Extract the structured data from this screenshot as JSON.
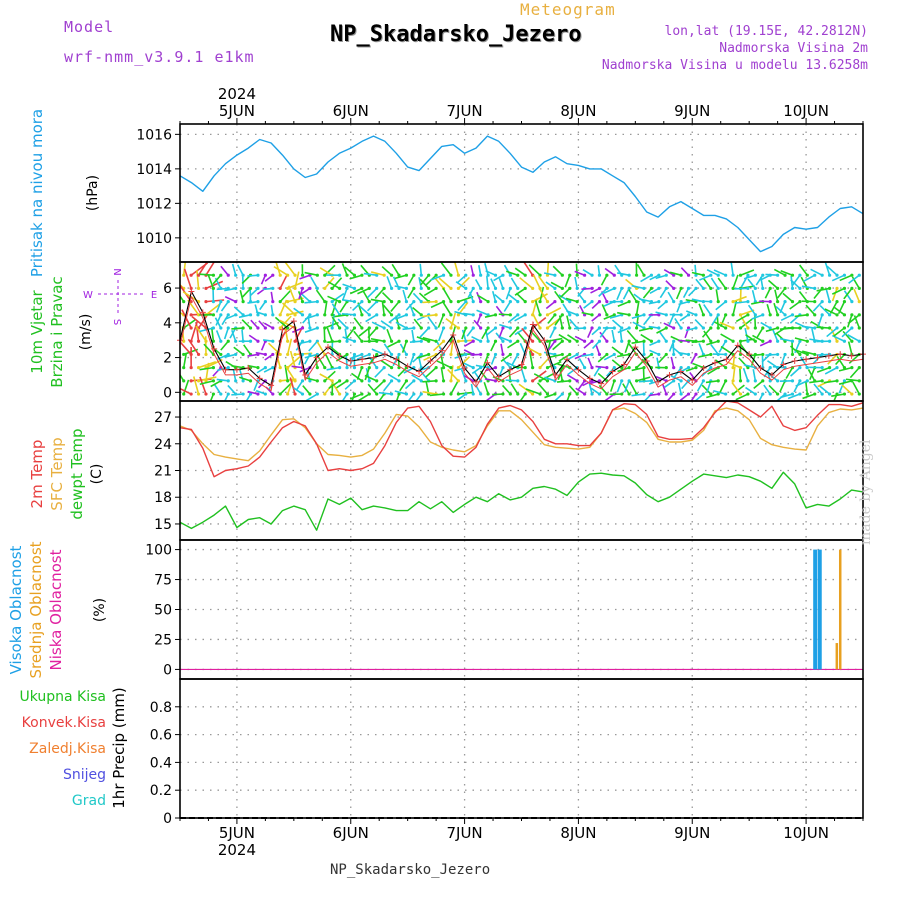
{
  "header": {
    "model_label": "Model",
    "model_name": "wrf-nmm_v3.9.1 e1km",
    "kind": "Meteogram",
    "station": "NP_Skadarsko_Jezero",
    "lonlat": "lon,lat (19.15E, 42.2812N)",
    "altitude": "Nadmorska Visina 2m",
    "model_altitude": "Nadmorska Visina u modelu 13.6258m"
  },
  "footer": {
    "station": "NP_Skadarsko_Jezero",
    "credit": "made by Angel"
  },
  "colors": {
    "pressure": "#1ea0e6",
    "t2m": "#e84040",
    "sfc": "#e8b040",
    "dewpt": "#20c020",
    "high_cloud": "#1ea0e6",
    "mid_cloud": "#e8a020",
    "low_cloud": "#e020a0",
    "wind_label": "#20c020",
    "barb_slow": "#a020e0",
    "barb_mid": "#20c8e0",
    "barb_fast": "#20d020",
    "barb_faster": "#e8d020",
    "barb_fastest": "#e84040"
  },
  "time_axis": {
    "year": "2024",
    "days": [
      "5JUN",
      "6JUN",
      "7JUN",
      "8JUN",
      "9JUN",
      "10JUN"
    ]
  },
  "chart_data": [
    {
      "type": "line",
      "panel": "pressure",
      "ylabel": "Pritisak na nivou mora",
      "unit": "(hPa)",
      "ylim": [
        1008.6,
        1016.6
      ],
      "yticks": [
        1010,
        1012,
        1014,
        1016
      ],
      "grid": true,
      "x": [
        4.5,
        4.6,
        4.7,
        4.8,
        4.9,
        5.0,
        5.1,
        5.2,
        5.3,
        5.4,
        5.5,
        5.6,
        5.7,
        5.8,
        5.9,
        6.0,
        6.1,
        6.2,
        6.3,
        6.4,
        6.5,
        6.6,
        6.7,
        6.8,
        6.9,
        7.0,
        7.1,
        7.2,
        7.3,
        7.4,
        7.5,
        7.6,
        7.7,
        7.8,
        7.9,
        8.0,
        8.1,
        8.2,
        8.3,
        8.4,
        8.5,
        8.6,
        8.7,
        8.8,
        8.9,
        9.0,
        9.1,
        9.2,
        9.3,
        9.4,
        9.5,
        9.6,
        9.7,
        9.8,
        9.9,
        10.0,
        10.1,
        10.2,
        10.3,
        10.4,
        10.5
      ],
      "series": [
        {
          "values": [
            1013.6,
            1013.2,
            1012.7,
            1013.6,
            1014.3,
            1014.8,
            1015.2,
            1015.7,
            1015.5,
            1014.8,
            1014.0,
            1013.5,
            1013.7,
            1014.4,
            1014.9,
            1015.2,
            1015.6,
            1015.9,
            1015.6,
            1014.9,
            1014.1,
            1013.9,
            1014.6,
            1015.3,
            1015.4,
            1014.9,
            1015.2,
            1015.9,
            1015.6,
            1014.9,
            1014.1,
            1013.8,
            1014.4,
            1014.7,
            1014.3,
            1014.2,
            1014.0,
            1014.0,
            1013.6,
            1013.2,
            1012.4,
            1011.5,
            1011.2,
            1011.8,
            1012.1,
            1011.7,
            1011.3,
            1011.3,
            1011.1,
            1010.6,
            1009.9,
            1009.2,
            1009.5,
            1010.2,
            1010.6,
            1010.5,
            1010.6,
            1011.2,
            1011.7,
            1011.8,
            1011.4
          ]
        }
      ]
    },
    {
      "type": "line",
      "panel": "wind",
      "ylabel": "10m Vjetar Brzina i Pravac",
      "unit": "(m/s)",
      "ylim": [
        -0.5,
        7.5
      ],
      "yticks": [
        0,
        2,
        4,
        6
      ],
      "compass": {
        "n": "N",
        "e": "E",
        "w": "W",
        "s": "S"
      },
      "grid": true,
      "x": [
        4.5,
        4.6,
        4.7,
        4.8,
        4.9,
        5.0,
        5.1,
        5.2,
        5.3,
        5.4,
        5.5,
        5.6,
        5.7,
        5.8,
        5.9,
        6.0,
        6.1,
        6.2,
        6.3,
        6.4,
        6.5,
        6.6,
        6.7,
        6.8,
        6.9,
        7.0,
        7.1,
        7.2,
        7.3,
        7.4,
        7.5,
        7.6,
        7.7,
        7.8,
        7.9,
        8.0,
        8.1,
        8.2,
        8.3,
        8.4,
        8.5,
        8.6,
        8.7,
        8.8,
        8.9,
        9.0,
        9.1,
        9.2,
        9.3,
        9.4,
        9.5,
        9.6,
        9.7,
        9.8,
        9.9,
        10.0,
        10.1,
        10.2,
        10.3,
        10.4,
        10.5
      ],
      "series": [
        {
          "values": [
            3.0,
            5.8,
            4.6,
            2.5,
            1.3,
            1.3,
            1.4,
            0.8,
            0.4,
            3.6,
            4.1,
            1.0,
            2.0,
            2.6,
            2.1,
            1.8,
            1.9,
            2.0,
            2.2,
            1.9,
            1.5,
            1.2,
            1.8,
            2.4,
            3.3,
            1.4,
            0.6,
            1.7,
            0.9,
            1.3,
            1.6,
            3.9,
            3.0,
            1.0,
            1.9,
            1.3,
            0.8,
            0.5,
            1.2,
            1.6,
            2.6,
            1.8,
            0.6,
            1.0,
            1.2,
            0.7,
            1.4,
            1.7,
            1.9,
            2.7,
            2.2,
            1.4,
            1.0,
            1.6,
            1.8,
            1.9,
            2.0,
            2.1,
            2.2,
            2.1,
            2.2
          ]
        }
      ]
    },
    {
      "type": "line",
      "panel": "temperature",
      "ylabel": "2m Temp / SFC Temp / dewpt Temp",
      "series_labels": [
        "2m Temp",
        "SFC Temp",
        "dewpt Temp"
      ],
      "unit": "(C)",
      "ylim": [
        13.2,
        28.8
      ],
      "yticks": [
        15,
        18,
        21,
        24,
        27
      ],
      "grid": true,
      "x": [
        4.5,
        4.6,
        4.7,
        4.8,
        4.9,
        5.0,
        5.1,
        5.2,
        5.3,
        5.4,
        5.5,
        5.6,
        5.7,
        5.8,
        5.9,
        6.0,
        6.1,
        6.2,
        6.3,
        6.4,
        6.5,
        6.6,
        6.7,
        6.8,
        6.9,
        7.0,
        7.1,
        7.2,
        7.3,
        7.4,
        7.5,
        7.6,
        7.7,
        7.8,
        7.9,
        8.0,
        8.1,
        8.2,
        8.3,
        8.4,
        8.5,
        8.6,
        8.7,
        8.8,
        8.9,
        9.0,
        9.1,
        9.2,
        9.3,
        9.4,
        9.5,
        9.6,
        9.7,
        9.8,
        9.9,
        10.0,
        10.1,
        10.2,
        10.3,
        10.4,
        10.5
      ],
      "series": [
        {
          "values": [
            25.8,
            25.6,
            23.5,
            20.3,
            21.0,
            21.2,
            21.5,
            22.5,
            24.2,
            25.8,
            26.5,
            26.0,
            24.0,
            21.0,
            21.2,
            21.0,
            21.2,
            21.8,
            23.8,
            26.4,
            28.0,
            28.2,
            26.5,
            23.8,
            22.6,
            22.5,
            23.6,
            26.2,
            28.0,
            28.3,
            27.8,
            26.5,
            24.5,
            24.0,
            24.0,
            23.8,
            23.8,
            25.2,
            27.8,
            28.5,
            28.4,
            27.3,
            24.8,
            24.5,
            24.5,
            24.6,
            25.8,
            27.5,
            28.8,
            28.6,
            27.8,
            27.0,
            28.2,
            26.0,
            25.5,
            25.8,
            27.2,
            28.4,
            28.4,
            28.2,
            28.6
          ]
        },
        {
          "values": [
            26.0,
            25.5,
            24.0,
            22.8,
            22.5,
            22.3,
            22.1,
            23.2,
            25.0,
            26.7,
            26.8,
            25.8,
            24.0,
            22.8,
            22.7,
            22.5,
            22.7,
            23.4,
            25.2,
            27.3,
            27.1,
            25.9,
            24.2,
            23.6,
            23.3,
            23.1,
            23.8,
            26.0,
            27.7,
            27.7,
            26.7,
            25.3,
            23.9,
            23.6,
            23.5,
            23.4,
            23.6,
            25.2,
            27.8,
            28.0,
            27.4,
            26.4,
            24.5,
            24.2,
            24.2,
            24.4,
            25.5,
            27.7,
            28.0,
            27.7,
            26.7,
            24.6,
            23.9,
            23.6,
            23.4,
            23.3,
            26.0,
            27.5,
            27.9,
            27.8,
            28.0
          ]
        },
        {
          "values": [
            15.2,
            14.5,
            15.2,
            16.0,
            17.0,
            14.6,
            15.5,
            15.7,
            15.0,
            16.5,
            17.0,
            16.6,
            14.3,
            17.8,
            17.2,
            17.9,
            16.6,
            17.0,
            16.8,
            16.5,
            16.5,
            17.5,
            16.7,
            17.5,
            16.3,
            17.2,
            18.0,
            17.5,
            18.4,
            17.7,
            18.0,
            19.0,
            19.2,
            18.9,
            18.2,
            19.7,
            20.6,
            20.7,
            20.5,
            20.4,
            19.6,
            18.3,
            17.5,
            18.0,
            18.9,
            19.8,
            20.6,
            20.4,
            20.2,
            20.5,
            20.3,
            19.8,
            19.0,
            20.8,
            19.5,
            16.8,
            17.2,
            17.0,
            17.8,
            18.8,
            18.6
          ]
        }
      ]
    },
    {
      "type": "bar",
      "panel": "cloud",
      "series_labels": [
        "Visoka Oblacnost",
        "Srednja Oblacnost",
        "Niska Oblacnost"
      ],
      "unit": "(%)",
      "ylim": [
        -8,
        108
      ],
      "yticks": [
        0,
        25,
        50,
        75,
        100
      ],
      "grid": true,
      "series": [
        {
          "name": "Visoka Oblacnost",
          "x": [
            10.08,
            10.12
          ],
          "values": [
            100,
            100
          ]
        },
        {
          "name": "Srednja Oblacnost",
          "x": [
            10.27,
            10.3
          ],
          "values": [
            22,
            100
          ]
        },
        {
          "name": "Niska Oblacnost",
          "x": [],
          "values": []
        }
      ]
    },
    {
      "type": "bar",
      "panel": "precip",
      "ylabel": "1hr Precip",
      "unit": "(mm)",
      "series_labels": [
        "Ukupna Kisa",
        "Konvek.Kisa",
        "Zaledj.Kisa",
        "Snijeg",
        "Grad"
      ],
      "ylim": [
        0,
        1.0
      ],
      "yticks": [
        0,
        0.2,
        0.4,
        0.6,
        0.8
      ],
      "grid": true,
      "series": []
    }
  ]
}
